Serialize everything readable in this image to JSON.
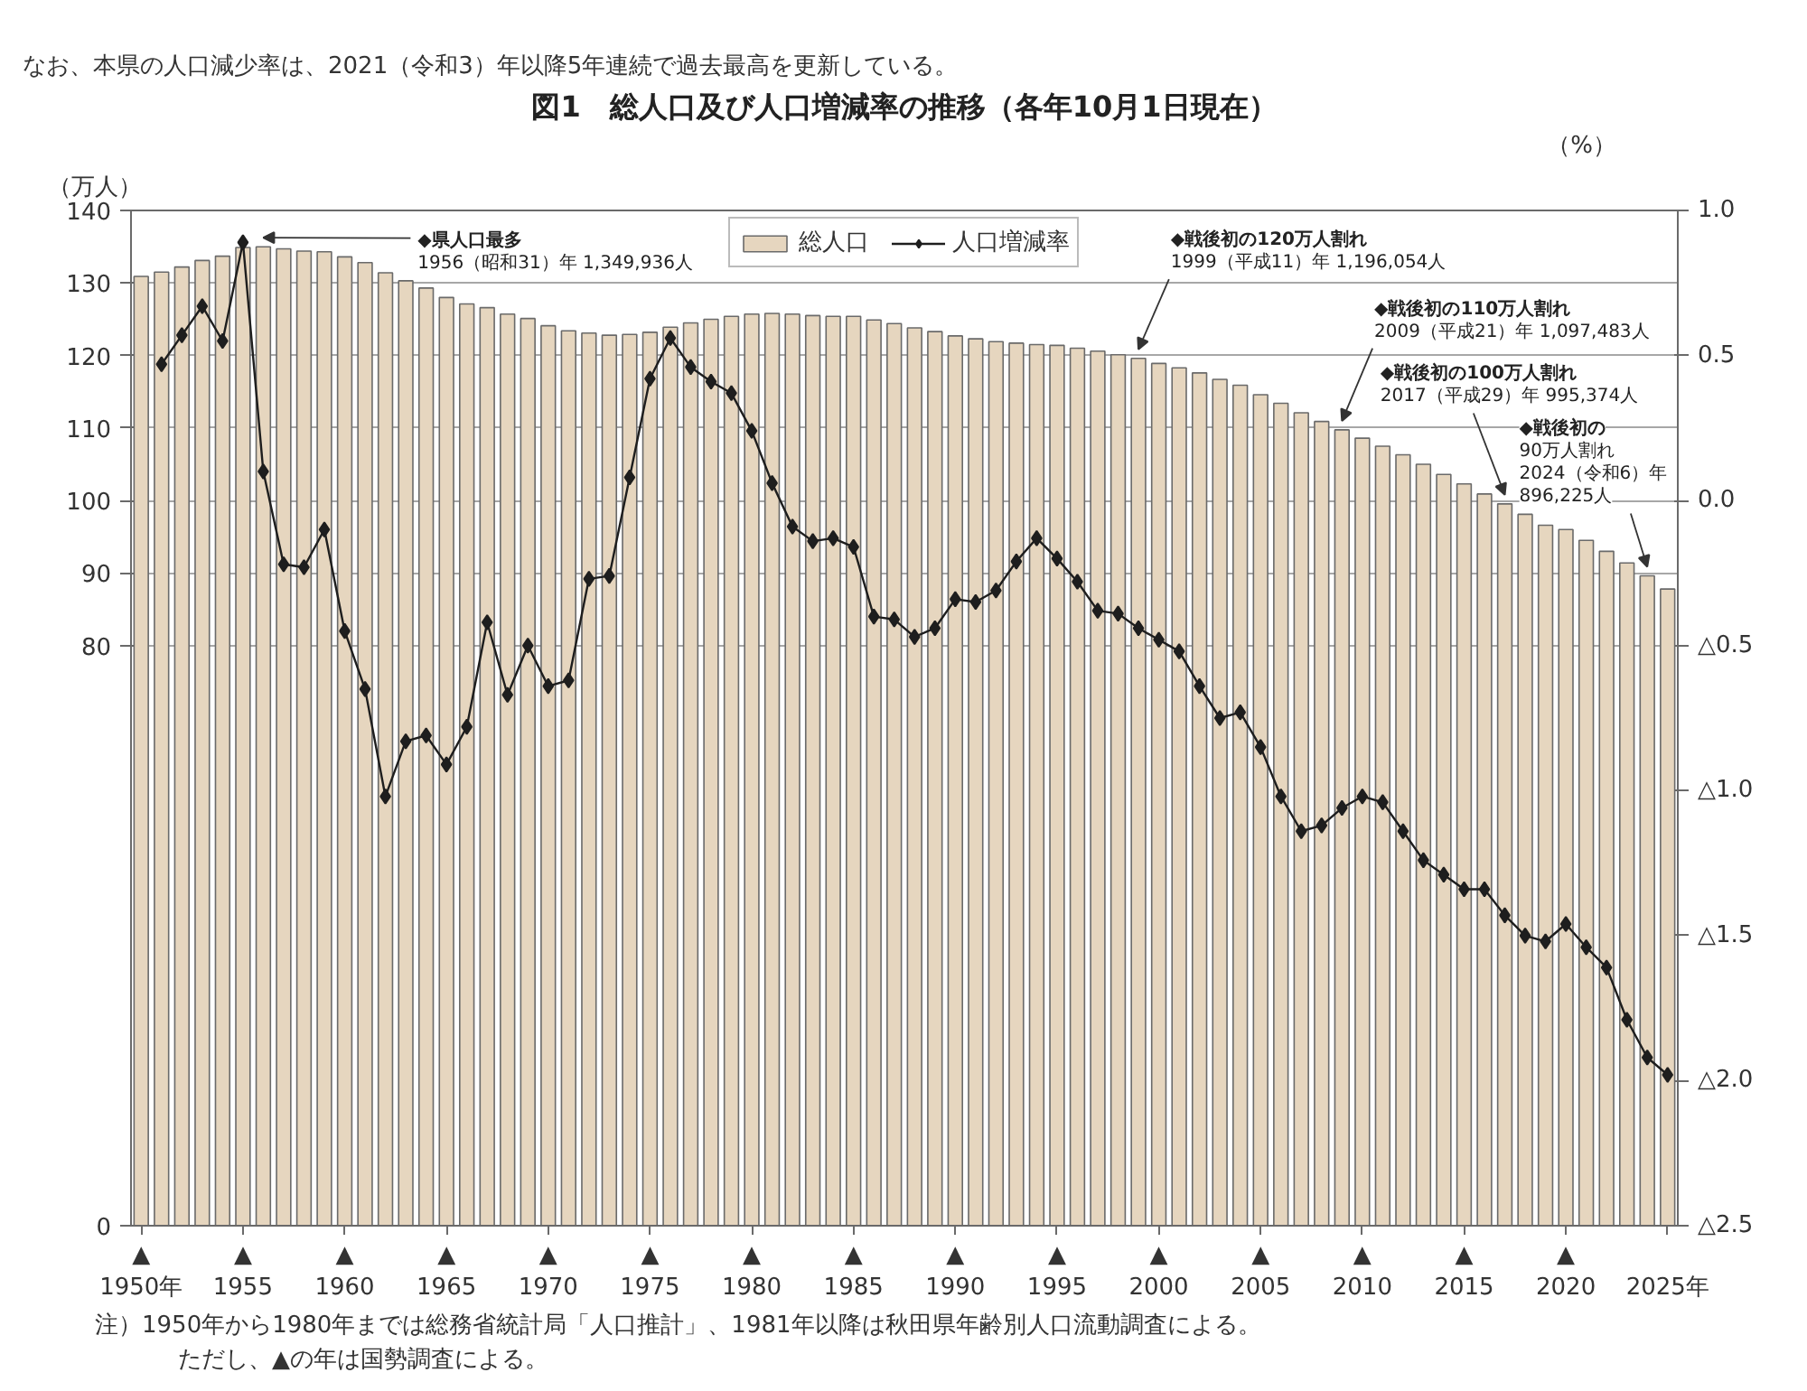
{
  "chart_data": {
    "type": "bar",
    "title": "図1　総人口及び人口増減率の推移（各年10月1日現在）",
    "ylabel": "（万人）",
    "y2label": "（%）",
    "x": [
      1950,
      1951,
      1952,
      1953,
      1954,
      1955,
      1956,
      1957,
      1958,
      1959,
      1960,
      1961,
      1962,
      1963,
      1964,
      1965,
      1966,
      1967,
      1968,
      1969,
      1970,
      1971,
      1972,
      1973,
      1974,
      1975,
      1976,
      1977,
      1978,
      1979,
      1980,
      1981,
      1982,
      1983,
      1984,
      1985,
      1986,
      1987,
      1988,
      1989,
      1990,
      1991,
      1992,
      1993,
      1994,
      1995,
      1996,
      1997,
      1998,
      1999,
      2000,
      2001,
      2002,
      2003,
      2004,
      2005,
      2006,
      2007,
      2008,
      2009,
      2010,
      2011,
      2012,
      2013,
      2014,
      2015,
      2016,
      2017,
      2018,
      2019,
      2020,
      2021,
      2022,
      2023,
      2024,
      2025
    ],
    "xlim": [
      1949.5,
      2025.5
    ],
    "xticks": [
      {
        "value": 1950,
        "label": "▲\n1950年"
      },
      {
        "value": 1955,
        "label": "▲\n1955"
      },
      {
        "value": 1960,
        "label": "▲\n1960"
      },
      {
        "value": 1965,
        "label": "▲\n1965"
      },
      {
        "value": 1970,
        "label": "▲\n1970"
      },
      {
        "value": 1975,
        "label": "▲\n1975"
      },
      {
        "value": 1980,
        "label": "▲\n1980"
      },
      {
        "value": 1985,
        "label": "▲\n1985"
      },
      {
        "value": 1990,
        "label": "▲\n1990"
      },
      {
        "value": 1995,
        "label": "▲\n1995"
      },
      {
        "value": 2000,
        "label": "▲\n2000"
      },
      {
        "value": 2005,
        "label": "▲\n2005"
      },
      {
        "value": 2010,
        "label": "▲\n2010"
      },
      {
        "value": 2015,
        "label": "▲\n2015"
      },
      {
        "value": 2020,
        "label": "▲\n2020"
      },
      {
        "value": 2025,
        "label": "2025年"
      }
    ],
    "ylim": [
      0,
      140
    ],
    "yticks": [
      0,
      80,
      90,
      100,
      110,
      120,
      130,
      140
    ],
    "y2lim": [
      -2.5,
      1.0
    ],
    "y2ticks": [
      {
        "value": 1.0,
        "label": "1.0"
      },
      {
        "value": 0.5,
        "label": "0.5"
      },
      {
        "value": 0.0,
        "label": "0.0"
      },
      {
        "value": -0.5,
        "label": "△0.5"
      },
      {
        "value": -1.0,
        "label": "△1.0"
      },
      {
        "value": -1.5,
        "label": "△1.5"
      },
      {
        "value": -2.0,
        "label": "△2.0"
      },
      {
        "value": -2.5,
        "label": "△2.5"
      }
    ],
    "grid": "y",
    "legend": "top",
    "series": [
      {
        "name": "総人口",
        "color": "#e6d6bf",
        "values": [
          130.9,
          131.5,
          132.2,
          133.1,
          133.7,
          134.9,
          134.9936,
          134.7,
          134.4,
          134.3,
          133.6,
          132.8,
          131.4,
          130.3,
          129.3,
          128.0,
          127.1,
          126.6,
          125.7,
          125.1,
          124.1,
          123.4,
          123.1,
          122.8,
          122.9,
          123.2,
          123.9,
          124.5,
          125.0,
          125.4,
          125.7,
          125.8,
          125.7,
          125.5,
          125.4,
          125.4,
          124.9,
          124.4,
          123.8,
          123.3,
          122.7,
          122.3,
          121.9,
          121.7,
          121.5,
          121.4,
          121.0,
          120.6,
          120.1,
          119.6054,
          118.9,
          118.3,
          117.6,
          116.7,
          115.9,
          114.6,
          113.4,
          112.1,
          110.9,
          109.7483,
          108.6,
          107.5,
          106.3,
          105.0,
          103.6,
          102.3,
          100.9,
          99.5374,
          98.1,
          96.6,
          96.0,
          94.5,
          93.0,
          91.4,
          89.6225,
          87.8
        ]
      },
      {
        "name": "人口増減率",
        "type": "line",
        "axis": "y2",
        "color": "#1e1e1e",
        "marker": "diamond",
        "values": [
          null,
          0.47,
          0.57,
          0.67,
          0.55,
          0.89,
          0.1,
          -0.22,
          -0.23,
          -0.1,
          -0.45,
          -0.65,
          -1.02,
          -0.83,
          -0.81,
          -0.91,
          -0.78,
          -0.42,
          -0.67,
          -0.5,
          -0.64,
          -0.62,
          -0.27,
          -0.26,
          0.08,
          0.42,
          0.56,
          0.46,
          0.41,
          0.37,
          0.24,
          0.06,
          -0.09,
          -0.14,
          -0.13,
          -0.16,
          -0.4,
          -0.41,
          -0.47,
          -0.44,
          -0.34,
          -0.35,
          -0.31,
          -0.21,
          -0.13,
          -0.2,
          -0.28,
          -0.38,
          -0.39,
          -0.44,
          -0.48,
          -0.52,
          -0.64,
          -0.75,
          -0.73,
          -0.85,
          -1.02,
          -1.14,
          -1.12,
          -1.06,
          -1.02,
          -1.04,
          -1.14,
          -1.24,
          -1.29,
          -1.34,
          -1.34,
          -1.43,
          -1.5,
          -1.52,
          -1.46,
          -1.54,
          -1.61,
          -1.79,
          -1.92,
          -1.98
        ]
      }
    ],
    "annotations": [
      "なお、本県の人口減少率は、2021（令和3）年以降5年連続で過去最高を更新している。",
      {
        "text": "◆県人口最多\n1956（昭和31）年 1,349,936人",
        "x": 1956,
        "y": 134.9936
      },
      {
        "text": "◆戦後初の120万人割れ\n1999（平成11）年 1,196,054人",
        "x": 1999,
        "y": 119.6054
      },
      {
        "text": "◆戦後初の110万人割れ\n2009（平成21）年 1,097,483人",
        "x": 2009,
        "y": 109.7483
      },
      {
        "text": "◆戦後初の100万人割れ\n2017（平成29）年 995,374人",
        "x": 2017,
        "y": 99.5374
      },
      {
        "text": "◆戦後初の\n90万人割れ\n2024（令和6）年\n896,225人",
        "x": 2024,
        "y": 89.6225
      },
      "注）1950年から1980年までは総務省統計局「人口推計」、1981年以降は秋田県年齢別人口流動調査による。",
      "ただし、▲の年は国勢調査による。"
    ]
  }
}
